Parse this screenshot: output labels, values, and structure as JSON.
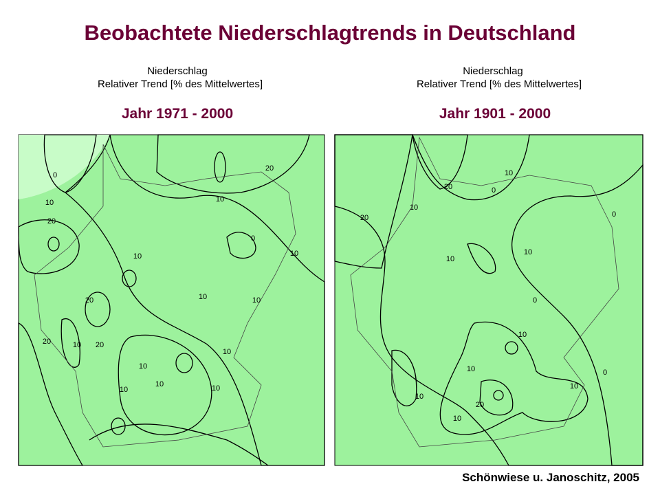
{
  "title": "Beobachtete Niederschlagtrends in Deutschland",
  "maps": [
    {
      "header": [
        "Niederschlag",
        "Relativer Trend [% des Mittelwertes]"
      ],
      "period": "Jahr 1971 - 2000",
      "contour_labels": [
        "0",
        "10",
        "20",
        "10",
        "20",
        "10",
        "10",
        "0",
        "10",
        "10",
        "20",
        "20",
        "10",
        "20",
        "10",
        "10",
        "10",
        "10",
        "10"
      ]
    },
    {
      "header": [
        "Niederschlag",
        "Relativer Trend [% des Mittelwertes]"
      ],
      "period": "Jahr 1901 - 2000",
      "contour_labels": [
        "0",
        "10",
        "20",
        "20",
        "10",
        "10",
        "10",
        "0",
        "0",
        "10",
        "10",
        "10",
        "20",
        "10",
        "10",
        "0"
      ]
    }
  ],
  "source": "Schönwiese u. Janoschitz, 2005"
}
